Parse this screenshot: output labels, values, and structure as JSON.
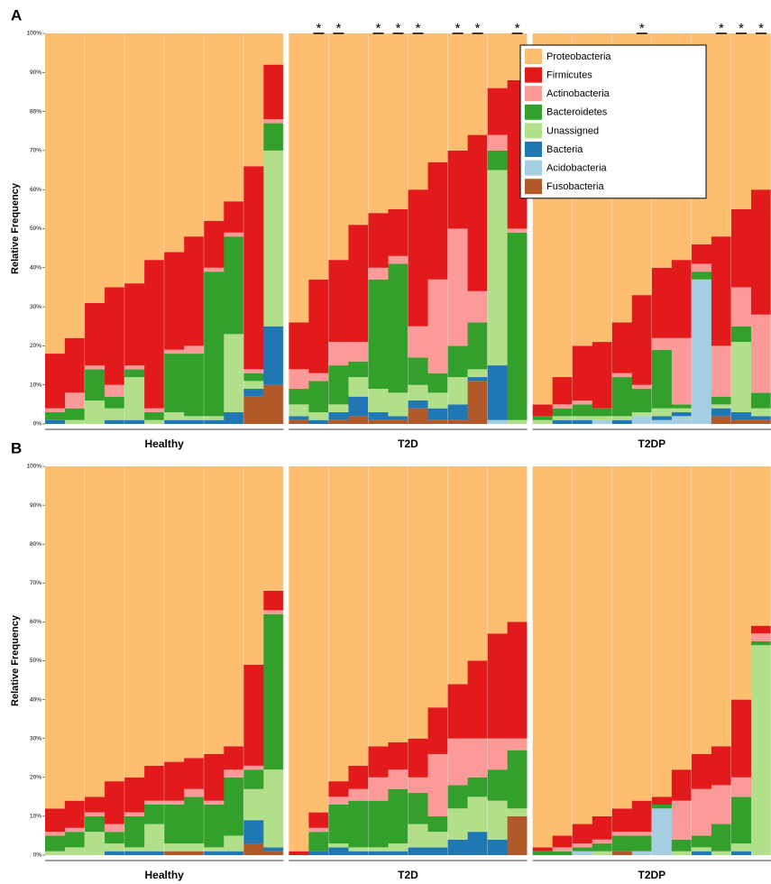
{
  "chart_data": [
    {
      "type": "stacked-bar",
      "panel": "A",
      "ylabel": "Relative Frequency",
      "legend": "upper right",
      "ylim": [
        0,
        100
      ],
      "yticks": [
        {
          "value": 0,
          "label": "0%"
        },
        {
          "value": 10,
          "label": "10%"
        },
        {
          "value": 20,
          "label": "20%"
        },
        {
          "value": 30,
          "label": "30%"
        },
        {
          "value": 40,
          "label": "40%"
        },
        {
          "value": 50,
          "label": "50%"
        },
        {
          "value": 60,
          "label": "60%"
        },
        {
          "value": 70,
          "label": "70%"
        },
        {
          "value": 80,
          "label": "80%"
        },
        {
          "value": 90,
          "label": "90%"
        },
        {
          "value": 100,
          "label": "100%"
        }
      ],
      "groups": [
        "Healthy",
        "T2D",
        "T2DP"
      ],
      "categories": [
        null,
        null,
        null,
        null,
        null,
        null,
        null,
        null,
        null,
        null,
        null,
        null,
        null,
        null,
        null,
        null,
        null,
        null,
        null,
        null,
        null,
        null,
        null,
        null,
        null,
        null,
        null,
        null,
        null,
        null,
        null,
        null,
        null,
        null,
        null,
        null
      ],
      "annotations": [
        {
          "bar": 13,
          "text": "*"
        },
        {
          "bar": 14,
          "text": "*"
        },
        {
          "bar": 16,
          "text": "*"
        },
        {
          "bar": 17,
          "text": "*"
        },
        {
          "bar": 18,
          "text": "*"
        },
        {
          "bar": 20,
          "text": "*"
        },
        {
          "bar": 21,
          "text": "*"
        },
        {
          "bar": 23,
          "text": "*"
        },
        {
          "bar": 29,
          "text": "*"
        },
        {
          "bar": 33,
          "text": "*"
        },
        {
          "bar": 34,
          "text": "*"
        },
        {
          "bar": 35,
          "text": "*"
        }
      ],
      "series": [
        {
          "name": "Proteobacteria",
          "color": "#fdbf6f",
          "values": [
            82,
            78,
            69,
            65,
            64,
            58,
            56,
            52,
            48,
            43,
            34,
            8,
            74,
            63,
            58,
            49,
            46,
            45,
            40,
            33,
            30,
            26,
            14,
            12,
            95,
            88,
            80,
            79,
            74,
            67,
            60,
            58,
            54,
            52,
            45,
            40
          ]
        },
        {
          "name": "Firmicutes",
          "color": "#e31a1c",
          "values": [
            14,
            14,
            16,
            25,
            21,
            38,
            25,
            28,
            12,
            8,
            52,
            14,
            12,
            24,
            21,
            30,
            14,
            12,
            35,
            30,
            20,
            40,
            12,
            38,
            3,
            7,
            14,
            17,
            13,
            23,
            18,
            20,
            5,
            28,
            20,
            32
          ]
        },
        {
          "name": "Actinobacteria",
          "color": "#fb9a99",
          "values": [
            1,
            4,
            1,
            3,
            1,
            1,
            1,
            2,
            1,
            1,
            1,
            1,
            5,
            2,
            6,
            5,
            3,
            2,
            8,
            24,
            30,
            8,
            4,
            1,
            0,
            1,
            1,
            0,
            1,
            1,
            3,
            17,
            2,
            13,
            10,
            20
          ]
        },
        {
          "name": "Bacteroidetes",
          "color": "#33a02c",
          "values": [
            2,
            3,
            8,
            3,
            2,
            2,
            15,
            16,
            37,
            25,
            2,
            7,
            4,
            8,
            10,
            4,
            28,
            33,
            7,
            5,
            8,
            12,
            5,
            48,
            1,
            2,
            3,
            2,
            10,
            6,
            15,
            1,
            2,
            2,
            4,
            4
          ]
        },
        {
          "name": "Unassigned",
          "color": "#b2df8a",
          "values": [
            0,
            1,
            6,
            3,
            11,
            1,
            2,
            1,
            1,
            20,
            2,
            45,
            3,
            2,
            2,
            5,
            6,
            6,
            4,
            4,
            7,
            2,
            50,
            1,
            1,
            1,
            1,
            1,
            1,
            1,
            2,
            1,
            0,
            1,
            18,
            2
          ]
        },
        {
          "name": "Bacteria",
          "color": "#1f78b4",
          "values": [
            1,
            0,
            0,
            1,
            1,
            0,
            1,
            1,
            1,
            3,
            2,
            15,
            1,
            1,
            2,
            5,
            2,
            1,
            2,
            3,
            4,
            1,
            14,
            0,
            0,
            1,
            1,
            0,
            1,
            0,
            1,
            1,
            0,
            2,
            2,
            1
          ]
        },
        {
          "name": "Acidobacteria",
          "color": "#a6cee3",
          "values": [
            0,
            0,
            0,
            0,
            0,
            0,
            0,
            0,
            0,
            0,
            0,
            0,
            0,
            0,
            0,
            0,
            0,
            0,
            0,
            0,
            0,
            0,
            1,
            0,
            0,
            0,
            0,
            1,
            0,
            2,
            1,
            2,
            37,
            0,
            0,
            0
          ]
        },
        {
          "name": "Fusobacteria",
          "color": "#b15928",
          "values": [
            0,
            0,
            0,
            0,
            0,
            0,
            0,
            0,
            0,
            0,
            7,
            10,
            1,
            0,
            1,
            2,
            1,
            1,
            4,
            1,
            1,
            11,
            0,
            0,
            0,
            0,
            0,
            0,
            0,
            0,
            0,
            0,
            0,
            2,
            1,
            1
          ]
        }
      ]
    },
    {
      "type": "stacked-bar",
      "panel": "B",
      "ylabel": "Relative Frequency",
      "ylim": [
        0,
        100
      ],
      "yticks": [
        {
          "value": 0,
          "label": "0%"
        },
        {
          "value": 10,
          "label": "10%"
        },
        {
          "value": 20,
          "label": "20%"
        },
        {
          "value": 30,
          "label": "30%"
        },
        {
          "value": 40,
          "label": "40%"
        },
        {
          "value": 50,
          "label": "50%"
        },
        {
          "value": 60,
          "label": "60%"
        },
        {
          "value": 70,
          "label": "70%"
        },
        {
          "value": 80,
          "label": "80%"
        },
        {
          "value": 90,
          "label": "90%"
        },
        {
          "value": 100,
          "label": "100%"
        }
      ],
      "groups": [
        "Healthy",
        "T2D",
        "T2DP"
      ],
      "categories": [
        null,
        null,
        null,
        null,
        null,
        null,
        null,
        null,
        null,
        null,
        null,
        null,
        null,
        null,
        null,
        null,
        null,
        null,
        null,
        null,
        null,
        null,
        null,
        null,
        null,
        null,
        null,
        null,
        null,
        null,
        null,
        null,
        null,
        null,
        null,
        null
      ],
      "series": [
        {
          "color": "#fdbf6f",
          "values": [
            88,
            86,
            85,
            81,
            80,
            77,
            76,
            75,
            74,
            72,
            51,
            32,
            99,
            89,
            81,
            77,
            72,
            71,
            70,
            62,
            56,
            50,
            43,
            40,
            98,
            95,
            92,
            90,
            88,
            86,
            85,
            78,
            74,
            72,
            60,
            41
          ]
        },
        {
          "color": "#e31a1c",
          "values": [
            6,
            7,
            4,
            11,
            9,
            9,
            10,
            8,
            12,
            6,
            26,
            5,
            1,
            4,
            4,
            6,
            8,
            7,
            10,
            12,
            14,
            20,
            27,
            30,
            1,
            3,
            5,
            6,
            6,
            8,
            2,
            8,
            9,
            10,
            20,
            2
          ]
        },
        {
          "color": "#fb9a99",
          "values": [
            1,
            1,
            1,
            2,
            1,
            1,
            1,
            2,
            1,
            2,
            1,
            1,
            0,
            1,
            2,
            3,
            6,
            5,
            4,
            16,
            12,
            10,
            8,
            3,
            0,
            1,
            1,
            1,
            1,
            1,
            0,
            10,
            12,
            10,
            5,
            2
          ]
        },
        {
          "color": "#33a02c",
          "values": [
            4,
            4,
            4,
            3,
            8,
            5,
            10,
            12,
            11,
            15,
            5,
            40,
            0,
            5,
            10,
            12,
            12,
            14,
            8,
            4,
            6,
            5,
            8,
            15,
            1,
            1,
            1,
            2,
            4,
            4,
            1,
            3,
            3,
            7,
            12,
            1
          ]
        },
        {
          "color": "#b2df8a",
          "values": [
            1,
            2,
            6,
            2,
            1,
            7,
            2,
            2,
            1,
            4,
            8,
            20,
            0,
            0,
            1,
            1,
            1,
            2,
            6,
            4,
            8,
            9,
            10,
            2,
            0,
            0,
            0,
            1,
            0,
            0,
            0,
            1,
            1,
            1,
            2,
            54
          ]
        },
        {
          "color": "#1f78b4",
          "values": [
            0,
            0,
            0,
            1,
            1,
            1,
            0,
            0,
            1,
            1,
            6,
            1,
            0,
            1,
            2,
            1,
            1,
            1,
            2,
            2,
            4,
            6,
            4,
            0,
            0,
            0,
            0,
            0,
            0,
            0,
            0,
            0,
            1,
            0,
            1,
            0
          ]
        },
        {
          "color": "#a6cee3",
          "values": [
            0,
            0,
            0,
            0,
            0,
            0,
            0,
            0,
            0,
            0,
            0,
            0,
            0,
            0,
            0,
            0,
            0,
            0,
            0,
            0,
            0,
            0,
            0,
            0,
            0,
            0,
            1,
            0,
            0,
            1,
            12,
            0,
            0,
            0,
            0,
            0
          ]
        },
        {
          "color": "#b15928",
          "values": [
            0,
            0,
            0,
            0,
            0,
            0,
            1,
            1,
            0,
            0,
            3,
            1,
            0,
            0,
            0,
            0,
            0,
            0,
            0,
            0,
            0,
            0,
            0,
            10,
            0,
            0,
            0,
            0,
            1,
            0,
            0,
            0,
            0,
            0,
            0,
            0
          ]
        }
      ]
    }
  ]
}
